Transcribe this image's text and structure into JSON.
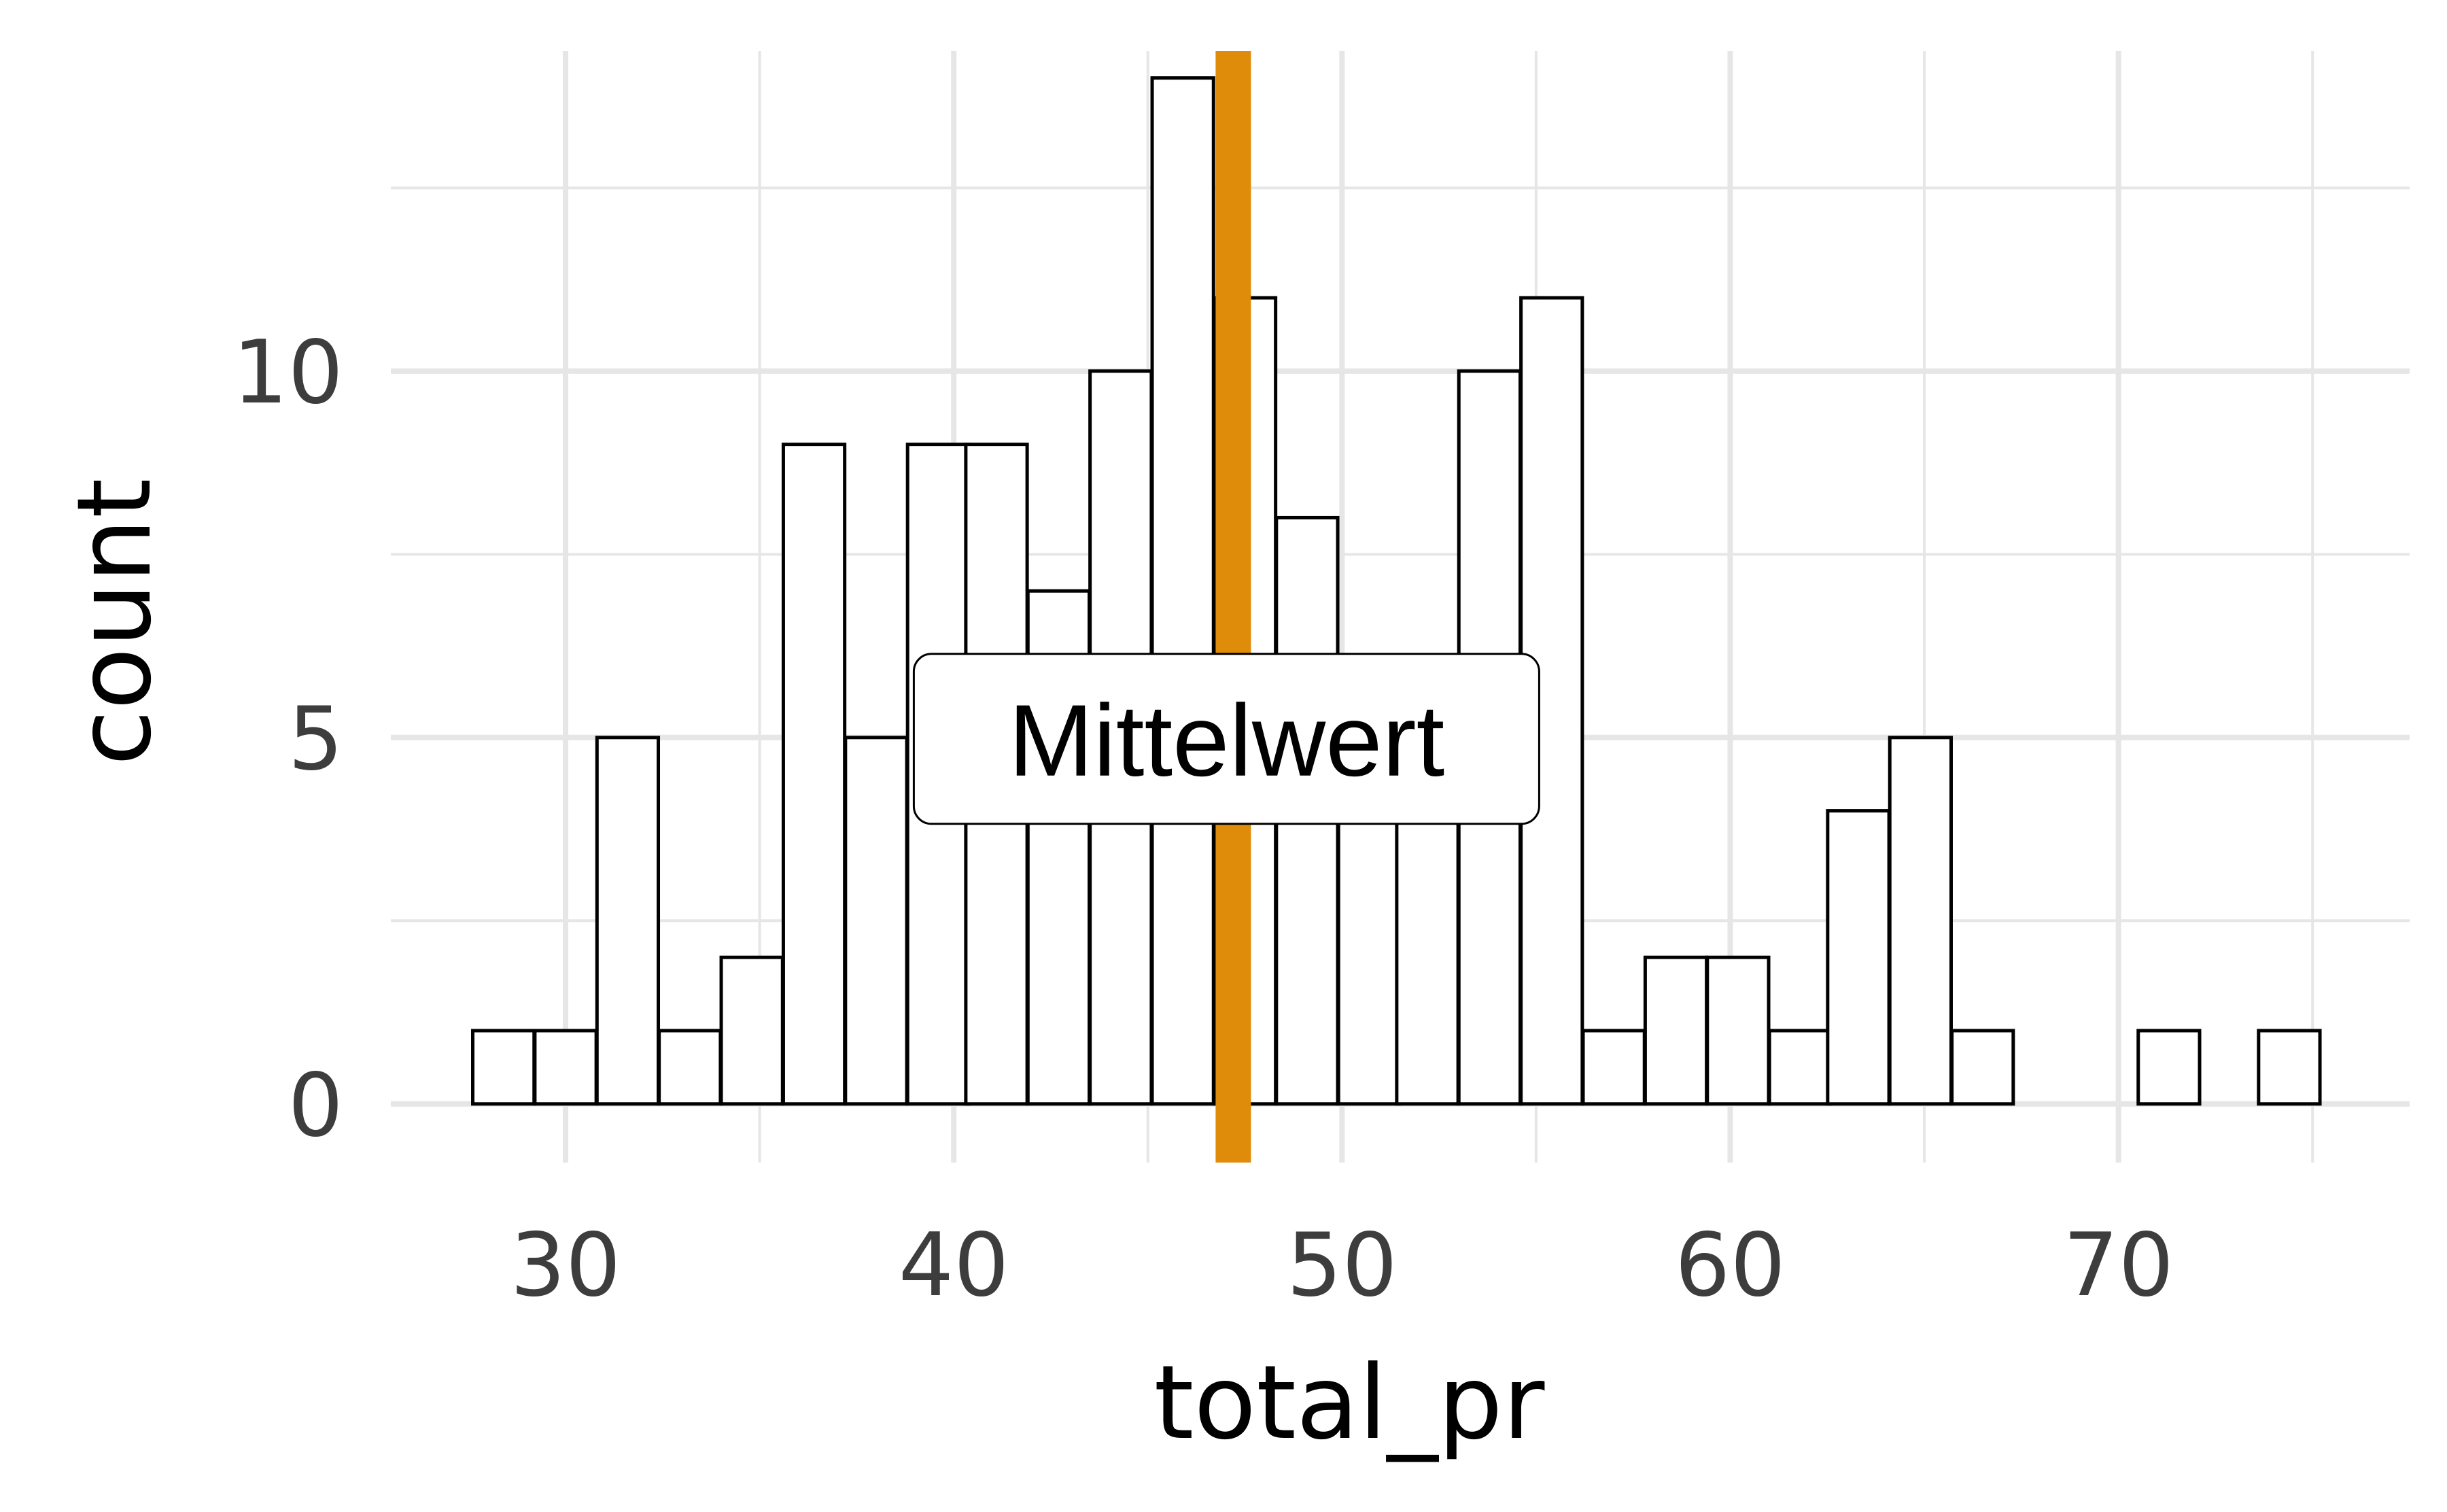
{
  "chart_data": {
    "type": "bar",
    "subtype": "histogram",
    "xlabel": "total_pr",
    "ylabel": "count",
    "xlim": [
      25.5,
      77.5
    ],
    "ylim": [
      -0.8,
      14.6
    ],
    "x_ticks": [
      30,
      40,
      50,
      60,
      70
    ],
    "y_ticks": [
      0,
      5,
      10
    ],
    "x_tick_labels": [
      "30",
      "40",
      "50",
      "60",
      "70"
    ],
    "y_tick_labels": [
      "0",
      "5",
      "10"
    ],
    "minor_x_gridlines": [
      35,
      45,
      55,
      65,
      75
    ],
    "minor_y_gridlines": [
      2.5,
      7.5,
      12.5
    ],
    "grid": true,
    "bin_width": 1.58,
    "bins": [
      {
        "x": 28.4,
        "count": 1
      },
      {
        "x": 30.0,
        "count": 1
      },
      {
        "x": 31.6,
        "count": 5
      },
      {
        "x": 33.2,
        "count": 1
      },
      {
        "x": 34.8,
        "count": 2
      },
      {
        "x": 36.4,
        "count": 9
      },
      {
        "x": 38.0,
        "count": 5
      },
      {
        "x": 39.6,
        "count": 9
      },
      {
        "x": 41.1,
        "count": 9
      },
      {
        "x": 42.7,
        "count": 7
      },
      {
        "x": 44.3,
        "count": 10
      },
      {
        "x": 45.9,
        "count": 14
      },
      {
        "x": 47.5,
        "count": 11
      },
      {
        "x": 49.1,
        "count": 8
      },
      {
        "x": 50.7,
        "count": 5
      },
      {
        "x": 52.2,
        "count": 5
      },
      {
        "x": 53.8,
        "count": 10
      },
      {
        "x": 55.4,
        "count": 11
      },
      {
        "x": 57.0,
        "count": 1
      },
      {
        "x": 58.6,
        "count": 2
      },
      {
        "x": 60.2,
        "count": 2
      },
      {
        "x": 61.8,
        "count": 1
      },
      {
        "x": 63.3,
        "count": 4
      },
      {
        "x": 64.9,
        "count": 5
      },
      {
        "x": 66.5,
        "count": 1
      },
      {
        "x": 68.1,
        "count": 0
      },
      {
        "x": 69.7,
        "count": 0
      },
      {
        "x": 71.3,
        "count": 1
      },
      {
        "x": 72.9,
        "count": 0
      },
      {
        "x": 74.4,
        "count": 1
      }
    ],
    "mean_line": {
      "x": 47.2,
      "color": "#E08C0B"
    },
    "annotation": {
      "label": "Mittelwert",
      "x": 47.2,
      "y": 5
    }
  },
  "colors": {
    "background": "#ffffff",
    "grid": "#e6e6e6",
    "bar_fill": "#ffffff",
    "bar_stroke": "#000000",
    "tick_text": "#3d3d3d"
  }
}
